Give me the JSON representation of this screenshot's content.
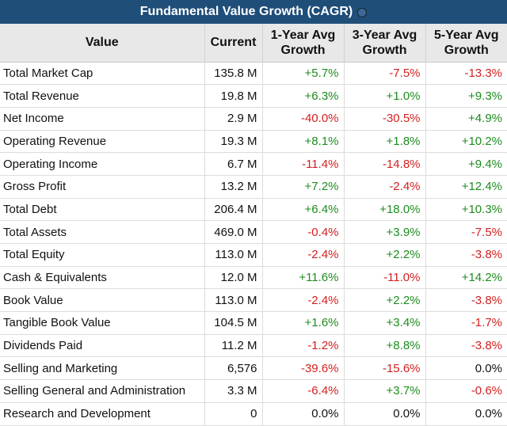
{
  "title": "Fundamental Value Growth (CAGR)",
  "colors": {
    "header_bg": "#1f4e79",
    "positive": "#1e8c1e",
    "negative": "#d42020"
  },
  "columns": [
    "Value",
    "Current",
    "1-Year Avg Growth",
    "3-Year Avg Growth",
    "5-Year Avg Growth"
  ],
  "rows": [
    {
      "name": "Total Market Cap",
      "current": "135.8 M",
      "y1": "+5.7%",
      "y3": "-7.5%",
      "y5": "-13.3%"
    },
    {
      "name": "Total Revenue",
      "current": "19.8 M",
      "y1": "+6.3%",
      "y3": "+1.0%",
      "y5": "+9.3%"
    },
    {
      "name": "Net Income",
      "current": "2.9 M",
      "y1": "-40.0%",
      "y3": "-30.5%",
      "y5": "+4.9%"
    },
    {
      "name": "Operating Revenue",
      "current": "19.3 M",
      "y1": "+8.1%",
      "y3": "+1.8%",
      "y5": "+10.2%"
    },
    {
      "name": "Operating Income",
      "current": "6.7 M",
      "y1": "-11.4%",
      "y3": "-14.8%",
      "y5": "+9.4%"
    },
    {
      "name": "Gross Profit",
      "current": "13.2 M",
      "y1": "+7.2%",
      "y3": "-2.4%",
      "y5": "+12.4%"
    },
    {
      "name": "Total Debt",
      "current": "206.4 M",
      "y1": "+6.4%",
      "y3": "+18.0%",
      "y5": "+10.3%"
    },
    {
      "name": "Total Assets",
      "current": "469.0 M",
      "y1": "-0.4%",
      "y3": "+3.9%",
      "y5": "-7.5%"
    },
    {
      "name": "Total Equity",
      "current": "113.0 M",
      "y1": "-2.4%",
      "y3": "+2.2%",
      "y5": "-3.8%"
    },
    {
      "name": "Cash & Equivalents",
      "current": "12.0 M",
      "y1": "+11.6%",
      "y3": "-11.0%",
      "y5": "+14.2%"
    },
    {
      "name": "Book Value",
      "current": "113.0 M",
      "y1": "-2.4%",
      "y3": "+2.2%",
      "y5": "-3.8%"
    },
    {
      "name": "Tangible Book Value",
      "current": "104.5 M",
      "y1": "+1.6%",
      "y3": "+3.4%",
      "y5": "-1.7%"
    },
    {
      "name": "Dividends Paid",
      "current": "11.2 M",
      "y1": "-1.2%",
      "y3": "+8.8%",
      "y5": "-3.8%"
    },
    {
      "name": "Selling and Marketing",
      "current": "6,576",
      "y1": "-39.6%",
      "y3": "-15.6%",
      "y5": "0.0%"
    },
    {
      "name": "Selling General and Administration",
      "current": "3.3 M",
      "y1": "-6.4%",
      "y3": "+3.7%",
      "y5": "-0.6%"
    },
    {
      "name": "Research and Development",
      "current": "0",
      "y1": "0.0%",
      "y3": "0.0%",
      "y5": "0.0%"
    }
  ]
}
